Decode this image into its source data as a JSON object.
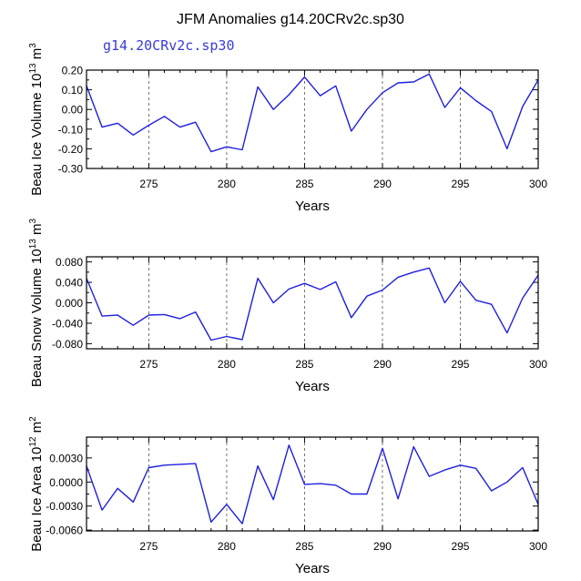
{
  "title": "JFM Anomalies g14.20CRv2c.sp30",
  "legend_text": "g14.20CRv2c.sp30",
  "colors": {
    "line": "#1f1fdf",
    "legend": "#3a3adf",
    "axis": "#000000",
    "grid": "#555555"
  },
  "chart_data": [
    {
      "type": "line",
      "ylabel_main": "Beau Ice Volume 10",
      "ylabel_exp": "13",
      "ylabel_unit": " m",
      "ylabel_unit_exp": "3",
      "xlabel": "Years",
      "xlim": [
        271,
        300
      ],
      "ylim": [
        -0.3,
        0.2
      ],
      "xticks": [
        275,
        280,
        285,
        290,
        295,
        300
      ],
      "xtick_labels": [
        "275",
        "280",
        "285",
        "290",
        "295",
        "300"
      ],
      "yticks": [
        -0.3,
        -0.2,
        -0.1,
        0.0,
        0.1,
        0.2
      ],
      "ytick_labels": [
        "-0.30",
        "-0.20",
        "-0.10",
        "0.00",
        "0.10",
        "0.20"
      ],
      "x": [
        271,
        272,
        273,
        274,
        275,
        276,
        277,
        278,
        279,
        280,
        281,
        282,
        283,
        284,
        285,
        286,
        287,
        288,
        289,
        290,
        291,
        292,
        293,
        294,
        295,
        296,
        297,
        298,
        299,
        300
      ],
      "values": [
        0.12,
        -0.09,
        -0.07,
        -0.13,
        -0.08,
        -0.035,
        -0.09,
        -0.065,
        -0.215,
        -0.19,
        -0.205,
        0.115,
        0.0,
        0.075,
        0.165,
        0.07,
        0.12,
        -0.11,
        0.0,
        0.085,
        0.135,
        0.14,
        0.18,
        0.01,
        0.11,
        0.045,
        -0.01,
        -0.2,
        0.015,
        0.15
      ]
    },
    {
      "type": "line",
      "ylabel_main": "Beau Snow Volume 10",
      "ylabel_exp": "13",
      "ylabel_unit": " m",
      "ylabel_unit_exp": "3",
      "xlabel": "Years",
      "xlim": [
        271,
        300
      ],
      "ylim": [
        -0.09,
        0.09
      ],
      "xticks": [
        275,
        280,
        285,
        290,
        295,
        300
      ],
      "xtick_labels": [
        "275",
        "280",
        "285",
        "290",
        "295",
        "300"
      ],
      "yticks": [
        -0.08,
        -0.04,
        0.0,
        0.04,
        0.08
      ],
      "ytick_labels": [
        "-0.080",
        "-0.040",
        "0.000",
        "0.040",
        "0.080"
      ],
      "x": [
        271,
        272,
        273,
        274,
        275,
        276,
        277,
        278,
        279,
        280,
        281,
        282,
        283,
        284,
        285,
        286,
        287,
        288,
        289,
        290,
        291,
        292,
        293,
        294,
        295,
        296,
        297,
        298,
        299,
        300
      ],
      "values": [
        0.048,
        -0.026,
        -0.024,
        -0.044,
        -0.024,
        -0.023,
        -0.031,
        -0.018,
        -0.073,
        -0.066,
        -0.072,
        0.048,
        0.0,
        0.027,
        0.038,
        0.026,
        0.041,
        -0.029,
        0.013,
        0.025,
        0.05,
        0.06,
        0.068,
        0.0,
        0.042,
        0.005,
        -0.003,
        -0.059,
        0.009,
        0.054
      ]
    },
    {
      "type": "line",
      "ylabel_main": "Beau Ice Area 10",
      "ylabel_exp": "12",
      "ylabel_unit": " m",
      "ylabel_unit_exp": "2",
      "xlabel": "Years",
      "xlim": [
        271,
        300
      ],
      "ylim": [
        -0.0061,
        0.0056
      ],
      "xticks": [
        275,
        280,
        285,
        290,
        295,
        300
      ],
      "xtick_labels": [
        "275",
        "280",
        "285",
        "290",
        "295",
        "300"
      ],
      "yticks": [
        -0.006,
        -0.003,
        0.0,
        0.003
      ],
      "ytick_labels": [
        "-0.0060",
        "-0.0030",
        "0.0000",
        "0.0030"
      ],
      "x": [
        271,
        272,
        273,
        274,
        275,
        276,
        277,
        278,
        279,
        280,
        281,
        282,
        283,
        284,
        285,
        286,
        287,
        288,
        289,
        290,
        291,
        292,
        293,
        294,
        295,
        296,
        297,
        298,
        299,
        300
      ],
      "values": [
        0.002,
        -0.0035,
        -0.0008,
        -0.0025,
        0.0018,
        0.0021,
        0.0022,
        0.0023,
        -0.005,
        -0.0028,
        -0.0052,
        0.002,
        -0.0022,
        0.0046,
        -0.0003,
        -0.0002,
        -0.0004,
        -0.0015,
        -0.0015,
        0.0042,
        -0.0021,
        0.0044,
        0.0007,
        0.0015,
        0.0021,
        0.0017,
        -0.0011,
        0.0,
        0.0018,
        -0.0028
      ]
    }
  ]
}
